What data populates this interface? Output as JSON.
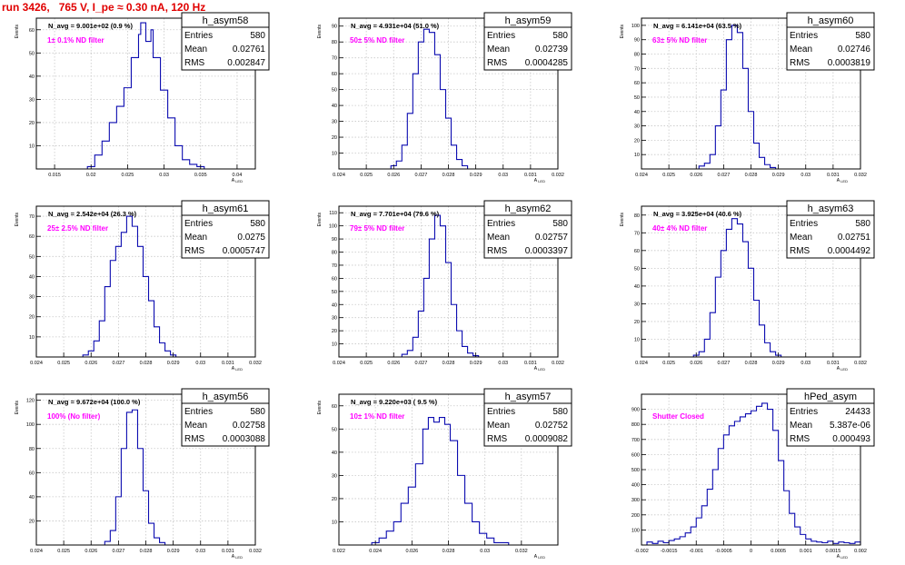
{
  "title": "run 3426,   765 V, I_pe ≈ 0.30 nA, 120 Hz",
  "colors": {
    "title": "#e00000",
    "histogram": "#0b0bb0",
    "filter_label": "#ff00ff",
    "grid": "#c8c8c8",
    "axis": "#000000"
  },
  "chart_data": [
    {
      "type": "histogram",
      "name": "h_asym58",
      "navg": "N_avg = 9.001e+02 (0.9 %)",
      "filter": "1± 0.1% ND filter",
      "stats": {
        "entries": "580",
        "mean": "0.02761",
        "rms": "0.002847"
      },
      "xlabel": "A_LED",
      "ylabel": "Events",
      "xlim": [
        0.0125,
        0.0425
      ],
      "ylim": [
        0,
        65
      ],
      "xticks": [
        0.015,
        0.02,
        0.025,
        0.03,
        0.035,
        0.04
      ],
      "xtick_labels": [
        "0.015",
        "0.02",
        "0.025",
        "0.03",
        "0.035",
        "0.04"
      ],
      "yticks": [
        10,
        20,
        30,
        40,
        50,
        60
      ],
      "ytick_labels": [
        "10",
        "20",
        "30",
        "40",
        "50",
        "60"
      ],
      "bin_edges": [
        0.0195,
        0.0205,
        0.0215,
        0.0225,
        0.0235,
        0.0245,
        0.0255,
        0.0265,
        0.0268,
        0.0275,
        0.0282,
        0.0285,
        0.0295,
        0.0305,
        0.0315,
        0.0325,
        0.0335,
        0.0345,
        0.0355
      ],
      "counts": [
        1,
        6,
        12,
        20,
        27,
        35,
        48,
        58,
        63,
        55,
        60,
        48,
        34,
        22,
        10,
        4,
        2,
        1
      ]
    },
    {
      "type": "histogram",
      "name": "h_asym59",
      "navg": "N_avg = 4.931e+04 (51.0 %)",
      "filter": "50± 5% ND filter",
      "stats": {
        "entries": "580",
        "mean": "0.02739",
        "rms": "0.0004285"
      },
      "xlabel": "A_LED",
      "ylabel": "Events",
      "xlim": [
        0.024,
        0.032
      ],
      "ylim": [
        0,
        95
      ],
      "xticks": [
        0.024,
        0.025,
        0.026,
        0.027,
        0.028,
        0.029,
        0.03,
        0.031,
        0.032
      ],
      "xtick_labels": [
        "0.024",
        "0.025",
        "0.026",
        "0.027",
        "0.028",
        "0.029",
        "0.03",
        "0.031",
        "0.032"
      ],
      "yticks": [
        10,
        20,
        30,
        40,
        50,
        60,
        70,
        80,
        90
      ],
      "ytick_labels": [
        "10",
        "20",
        "30",
        "40",
        "50",
        "60",
        "70",
        "80",
        "90"
      ],
      "bin_edges": [
        0.0259,
        0.0261,
        0.0263,
        0.0265,
        0.0267,
        0.0269,
        0.0271,
        0.0273,
        0.0275,
        0.0277,
        0.0279,
        0.0281,
        0.0283,
        0.0285,
        0.0287
      ],
      "counts": [
        2,
        5,
        15,
        35,
        60,
        80,
        88,
        86,
        72,
        50,
        32,
        15,
        6,
        2
      ]
    },
    {
      "type": "histogram",
      "name": "h_asym60",
      "navg": "N_avg = 6.141e+04 (63.5 %)",
      "filter": "63± 5% ND filter",
      "stats": {
        "entries": "580",
        "mean": "0.02746",
        "rms": "0.0003819"
      },
      "xlabel": "A_LED",
      "ylabel": "Events",
      "xlim": [
        0.024,
        0.032
      ],
      "ylim": [
        0,
        105
      ],
      "xticks": [
        0.024,
        0.025,
        0.026,
        0.027,
        0.028,
        0.029,
        0.03,
        0.031,
        0.032
      ],
      "xtick_labels": [
        "0.024",
        "0.025",
        "0.026",
        "0.027",
        "0.028",
        "0.029",
        "0.03",
        "0.031",
        "0.032"
      ],
      "yticks": [
        10,
        20,
        30,
        40,
        50,
        60,
        70,
        80,
        90,
        100
      ],
      "ytick_labels": [
        "10",
        "20",
        "30",
        "40",
        "50",
        "60",
        "70",
        "80",
        "90",
        "100"
      ],
      "bin_edges": [
        0.0261,
        0.0263,
        0.0265,
        0.0267,
        0.0269,
        0.0271,
        0.0273,
        0.0275,
        0.0277,
        0.0279,
        0.0281,
        0.0283,
        0.0285,
        0.0287,
        0.0289
      ],
      "counts": [
        2,
        4,
        10,
        30,
        55,
        90,
        100,
        95,
        70,
        40,
        18,
        8,
        3,
        1
      ]
    },
    {
      "type": "histogram",
      "name": "h_asym61",
      "navg": "N_avg = 2.542e+04 (26.3 %)",
      "filter": "25± 2.5% ND filter",
      "stats": {
        "entries": "580",
        "mean": "0.0275",
        "rms": "0.0005747"
      },
      "xlabel": "A_LED",
      "ylabel": "Events",
      "xlim": [
        0.024,
        0.032
      ],
      "ylim": [
        0,
        75
      ],
      "xticks": [
        0.024,
        0.025,
        0.026,
        0.027,
        0.028,
        0.029,
        0.03,
        0.031,
        0.032
      ],
      "xtick_labels": [
        "0.024",
        "0.025",
        "0.026",
        "0.027",
        "0.028",
        "0.029",
        "0.03",
        "0.031",
        "0.032"
      ],
      "yticks": [
        10,
        20,
        30,
        40,
        50,
        60,
        70
      ],
      "ytick_labels": [
        "10",
        "20",
        "30",
        "40",
        "50",
        "60",
        "70"
      ],
      "bin_edges": [
        0.0257,
        0.0259,
        0.0261,
        0.0263,
        0.0265,
        0.0267,
        0.0269,
        0.0271,
        0.0273,
        0.0275,
        0.0277,
        0.0279,
        0.0281,
        0.0283,
        0.0285,
        0.0287,
        0.0289,
        0.0291
      ],
      "counts": [
        1,
        3,
        8,
        18,
        35,
        48,
        55,
        62,
        70,
        65,
        55,
        40,
        28,
        15,
        7,
        3,
        1
      ]
    },
    {
      "type": "histogram",
      "name": "h_asym62",
      "navg": "N_avg = 7.701e+04 (79.6 %)",
      "filter": "79± 5% ND filter",
      "stats": {
        "entries": "580",
        "mean": "0.02757",
        "rms": "0.0003397"
      },
      "xlabel": "A_LED",
      "ylabel": "Events",
      "xlim": [
        0.024,
        0.032
      ],
      "ylim": [
        0,
        115
      ],
      "xticks": [
        0.024,
        0.025,
        0.026,
        0.027,
        0.028,
        0.029,
        0.03,
        0.031,
        0.032
      ],
      "xtick_labels": [
        "0.024",
        "0.025",
        "0.026",
        "0.027",
        "0.028",
        "0.029",
        "0.03",
        "0.031",
        "0.032"
      ],
      "yticks": [
        10,
        20,
        30,
        40,
        50,
        60,
        70,
        80,
        90,
        100,
        110
      ],
      "ytick_labels": [
        "10",
        "20",
        "30",
        "40",
        "50",
        "60",
        "70",
        "80",
        "90",
        "100",
        "110"
      ],
      "bin_edges": [
        0.0263,
        0.0265,
        0.0267,
        0.0269,
        0.0271,
        0.0273,
        0.0275,
        0.0277,
        0.0279,
        0.0281,
        0.0283,
        0.0285,
        0.0287,
        0.0289,
        0.0291
      ],
      "counts": [
        2,
        5,
        15,
        35,
        60,
        90,
        108,
        100,
        72,
        40,
        20,
        8,
        3,
        1
      ]
    },
    {
      "type": "histogram",
      "name": "h_asym63",
      "navg": "N_avg = 3.925e+04 (40.6 %)",
      "filter": "40± 4% ND filter",
      "stats": {
        "entries": "580",
        "mean": "0.02751",
        "rms": "0.0004492"
      },
      "xlabel": "A_LED",
      "ylabel": "Events",
      "xlim": [
        0.024,
        0.032
      ],
      "ylim": [
        0,
        85
      ],
      "xticks": [
        0.024,
        0.025,
        0.026,
        0.027,
        0.028,
        0.029,
        0.03,
        0.031,
        0.032
      ],
      "xtick_labels": [
        "0.024",
        "0.025",
        "0.026",
        "0.027",
        "0.028",
        "0.029",
        "0.03",
        "0.031",
        "0.032"
      ],
      "yticks": [
        10,
        20,
        30,
        40,
        50,
        60,
        70,
        80
      ],
      "ytick_labels": [
        "10",
        "20",
        "30",
        "40",
        "50",
        "60",
        "70",
        "80"
      ],
      "bin_edges": [
        0.0259,
        0.0261,
        0.0263,
        0.0265,
        0.0267,
        0.0269,
        0.0271,
        0.0273,
        0.0275,
        0.0277,
        0.0279,
        0.0281,
        0.0283,
        0.0285,
        0.0287,
        0.0289,
        0.0291
      ],
      "counts": [
        1,
        3,
        10,
        25,
        45,
        60,
        72,
        78,
        75,
        65,
        50,
        32,
        18,
        8,
        3,
        1
      ]
    },
    {
      "type": "histogram",
      "name": "h_asym56",
      "navg": "N_avg = 9.672e+04 (100.0 %)",
      "filter": "100% (No filter)",
      "stats": {
        "entries": "580",
        "mean": "0.02758",
        "rms": "0.0003088"
      },
      "xlabel": "A_LED",
      "ylabel": "Events",
      "xlim": [
        0.024,
        0.032
      ],
      "ylim": [
        0,
        125
      ],
      "xticks": [
        0.024,
        0.025,
        0.026,
        0.027,
        0.028,
        0.029,
        0.03,
        0.031,
        0.032
      ],
      "xtick_labels": [
        "0.024",
        "0.025",
        "0.026",
        "0.027",
        "0.028",
        "0.029",
        "0.03",
        "0.031",
        "0.032"
      ],
      "yticks": [
        20,
        40,
        60,
        80,
        100,
        120
      ],
      "ytick_labels": [
        "20",
        "40",
        "60",
        "80",
        "100",
        "120"
      ],
      "bin_edges": [
        0.0265,
        0.0267,
        0.0269,
        0.0271,
        0.0273,
        0.0275,
        0.0277,
        0.0279,
        0.0281,
        0.0283,
        0.0285,
        0.0287
      ],
      "counts": [
        3,
        12,
        40,
        80,
        110,
        112,
        80,
        45,
        18,
        6,
        2
      ]
    },
    {
      "type": "histogram",
      "name": "h_asym57",
      "navg": "N_avg = 9.220e+03 ( 9.5 %)",
      "filter": "10± 1% ND filter",
      "stats": {
        "entries": "580",
        "mean": "0.02752",
        "rms": "0.0009082"
      },
      "xlabel": "A_LED",
      "ylabel": "Events",
      "xlim": [
        0.022,
        0.034
      ],
      "ylim": [
        0,
        65
      ],
      "xticks": [
        0.022,
        0.024,
        0.026,
        0.028,
        0.03,
        0.032,
        0.034
      ],
      "xtick_labels": [
        "0.022",
        "0.024",
        "0.026",
        "0.028",
        "0.03",
        "0.032",
        ""
      ],
      "yticks": [
        10,
        20,
        30,
        40,
        50,
        60
      ],
      "ytick_labels": [
        "10",
        "20",
        "30",
        "40",
        "50",
        "60"
      ],
      "bin_edges": [
        0.0238,
        0.0242,
        0.0246,
        0.025,
        0.0254,
        0.0258,
        0.0262,
        0.0266,
        0.0269,
        0.0272,
        0.0275,
        0.0278,
        0.0281,
        0.0285,
        0.0289,
        0.0293,
        0.0297,
        0.0301,
        0.0305,
        0.0309,
        0.0313
      ],
      "counts": [
        1,
        3,
        6,
        10,
        18,
        25,
        35,
        50,
        55,
        53,
        55,
        52,
        45,
        30,
        18,
        10,
        5,
        3,
        1,
        1
      ]
    },
    {
      "type": "histogram",
      "name": "hPed_asym",
      "navg": "",
      "filter": "Shutter Closed",
      "stats": {
        "entries": "24433",
        "mean": "5.387e-06",
        "rms": "0.000493"
      },
      "xlabel": "A_LED",
      "ylabel": "",
      "xlim": [
        -0.002,
        0.002
      ],
      "ylim": [
        0,
        1000
      ],
      "xticks": [
        -0.002,
        -0.0015,
        -0.001,
        -0.0005,
        0,
        0.0005,
        0.001,
        0.0015,
        0.002
      ],
      "xtick_labels": [
        "-0.002",
        "-0.0015",
        "-0.001",
        "-0.0005",
        "0",
        "0.0005",
        "0.001",
        "0.0015",
        "0.002"
      ],
      "yticks": [
        100,
        200,
        300,
        400,
        500,
        600,
        700,
        800,
        900
      ],
      "ytick_labels": [
        "100",
        "200",
        "300",
        "400",
        "500",
        "600",
        "700",
        "800",
        "900"
      ],
      "bin_edges": [
        -0.0019,
        -0.0018,
        -0.0017,
        -0.0016,
        -0.0015,
        -0.0014,
        -0.0013,
        -0.0012,
        -0.0011,
        -0.001,
        -0.0009,
        -0.0008,
        -0.0007,
        -0.0006,
        -0.0005,
        -0.0004,
        -0.0003,
        -0.0002,
        -0.0001,
        0,
        0.0001,
        0.0002,
        0.0003,
        0.0004,
        0.0005,
        0.0006,
        0.0007,
        0.0008,
        0.0009,
        0.001,
        0.0011,
        0.0012,
        0.0013,
        0.0014,
        0.0015,
        0.0016,
        0.0017,
        0.0018,
        0.0019,
        0.002
      ],
      "counts": [
        20,
        10,
        25,
        15,
        30,
        40,
        55,
        80,
        120,
        180,
        260,
        370,
        500,
        640,
        730,
        790,
        820,
        850,
        870,
        890,
        920,
        940,
        900,
        760,
        560,
        360,
        210,
        120,
        70,
        40,
        25,
        20,
        15,
        25,
        10,
        20,
        15,
        10,
        20
      ]
    }
  ]
}
